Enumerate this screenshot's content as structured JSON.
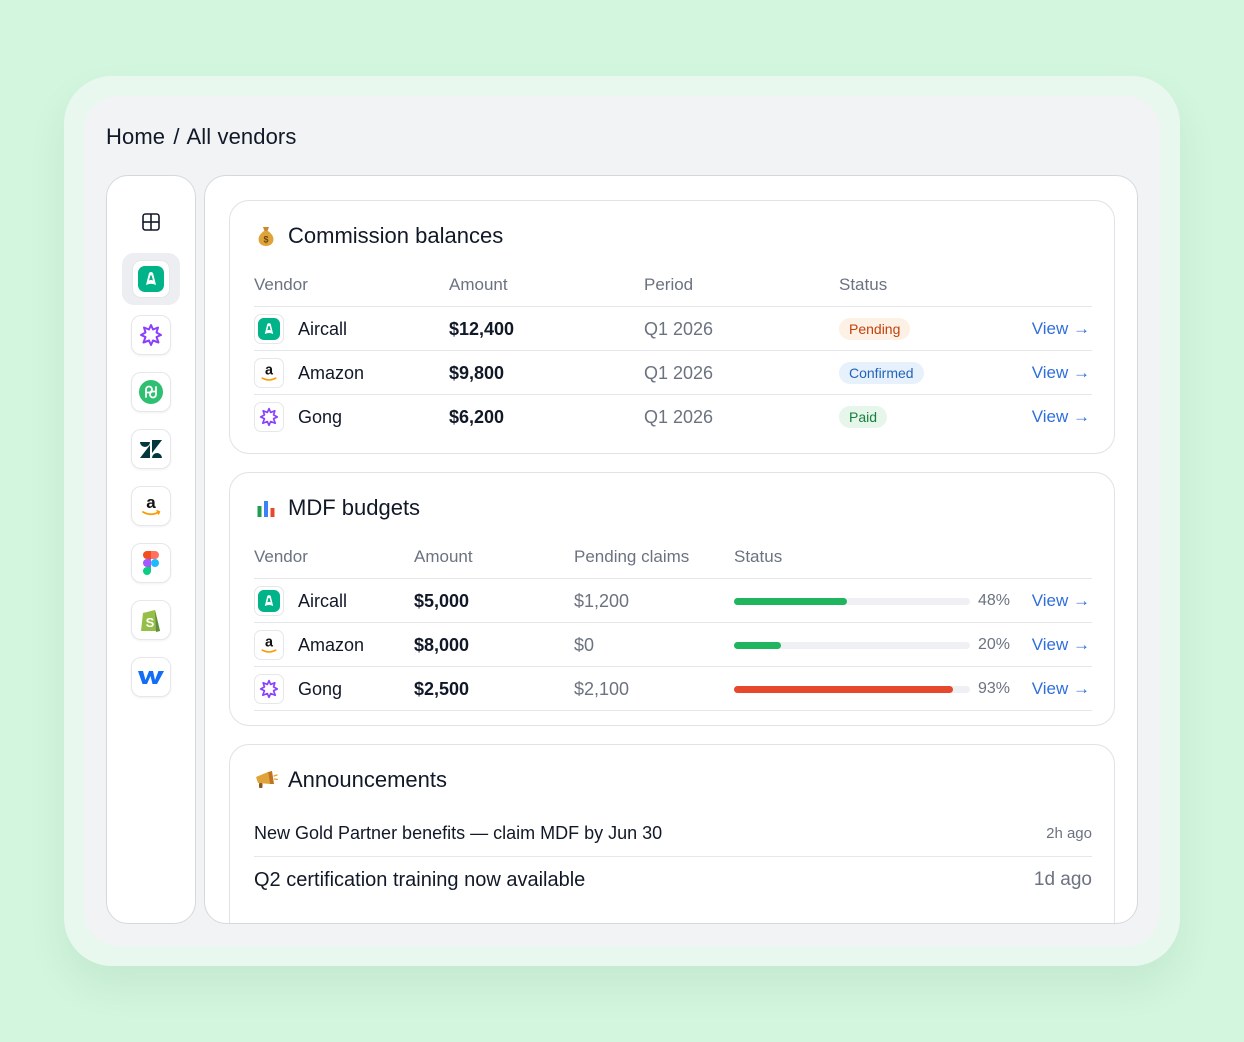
{
  "breadcrumb": {
    "home": "Home",
    "separator": "/",
    "current": "All vendors"
  },
  "sidebar": {
    "items": [
      {
        "name": "dashboard",
        "icon": "grid-icon"
      },
      {
        "name": "aircall",
        "icon": "aircall-logo",
        "active": true
      },
      {
        "name": "gong",
        "icon": "gong-logo"
      },
      {
        "name": "pandadoc",
        "icon": "pandadoc-logo"
      },
      {
        "name": "zendesk",
        "icon": "zendesk-logo"
      },
      {
        "name": "amazon",
        "icon": "amazon-logo"
      },
      {
        "name": "figma",
        "icon": "figma-logo"
      },
      {
        "name": "shopify",
        "icon": "shopify-logo"
      },
      {
        "name": "webflow",
        "icon": "webflow-logo"
      }
    ]
  },
  "commission": {
    "title": "Commission balances",
    "emoji": "money-bag-icon",
    "headers": {
      "vendor": "Vendor",
      "amount": "Amount",
      "period": "Period",
      "status": "Status"
    },
    "rows": [
      {
        "vendor": "Aircall",
        "amount": "$12,400",
        "period": "Q1 2026",
        "status": "Pending",
        "action": "View →"
      },
      {
        "vendor": "Amazon",
        "amount": "$9,800",
        "period": "Q1 2026",
        "status": "Confirmed",
        "action": "View →"
      },
      {
        "vendor": "Gong",
        "amount": "$6,200",
        "period": "Q1 2026",
        "status": "Paid",
        "action": "View →"
      }
    ]
  },
  "mdf": {
    "title": "MDF budgets",
    "emoji": "bar-chart-icon",
    "headers": {
      "vendor": "Vendor",
      "amount": "Amount",
      "pending": "Pending claims",
      "status": "Status"
    },
    "rows": [
      {
        "vendor": "Aircall",
        "amount": "$5,000",
        "pending": "$1,200",
        "progress": 48,
        "percent": "48%",
        "color": "#1fb45e",
        "action": "View →"
      },
      {
        "vendor": "Amazon",
        "amount": "$8,000",
        "pending": "$0",
        "progress": 20,
        "percent": "20%",
        "color": "#1fb45e",
        "action": "View →"
      },
      {
        "vendor": "Gong",
        "amount": "$2,500",
        "pending": "$2,100",
        "progress": 93,
        "percent": "93%",
        "color": "#e5482c",
        "action": "View →"
      }
    ]
  },
  "announcements": {
    "title": "Announcements",
    "emoji": "megaphone-icon",
    "items": [
      {
        "text": "New Gold Partner benefits — claim MDF by Jun 30",
        "time": "2h ago"
      },
      {
        "text": "Q2 certification training now available",
        "time": "1d ago"
      }
    ]
  },
  "colors": {
    "background": "#d3f6de",
    "link": "#2f6fdc",
    "progress_ok": "#1fb45e",
    "progress_warn": "#e5482c"
  }
}
